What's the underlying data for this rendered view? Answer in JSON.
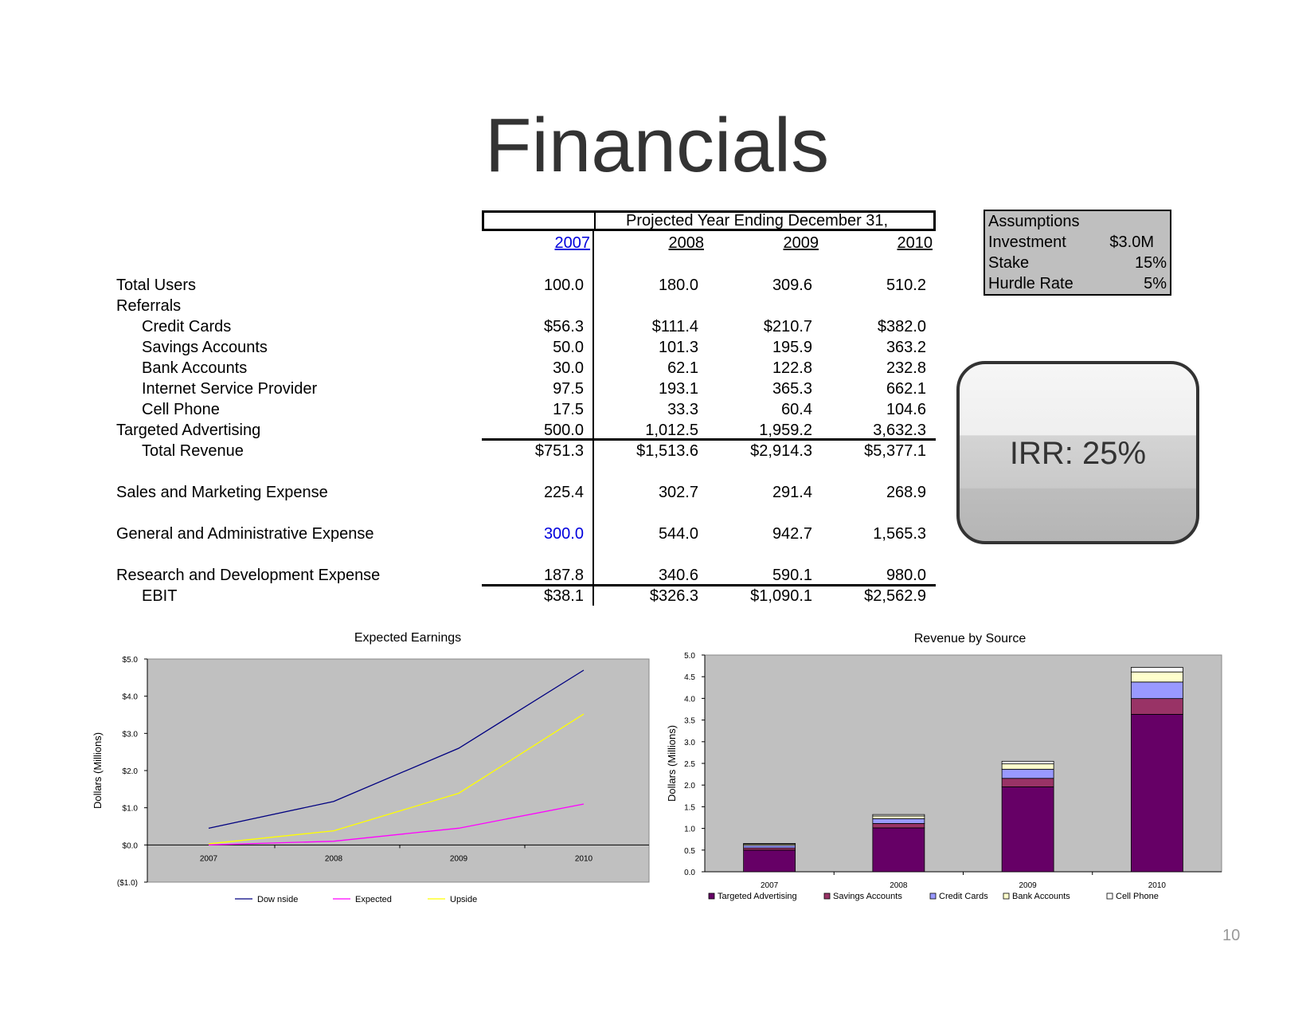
{
  "page": {
    "title": "Financials",
    "page_number": "10"
  },
  "table": {
    "header": "Projected Year Ending December 31,",
    "years": [
      "2007",
      "2008",
      "2009",
      "2010"
    ],
    "rows": [
      {
        "label": "Total Users",
        "values": [
          "100.0",
          "180.0",
          "309.6",
          "510.2"
        ]
      },
      {
        "label": "Referrals",
        "values": [
          "",
          "",
          "",
          ""
        ]
      },
      {
        "label": "Credit Cards",
        "values": [
          "$56.3",
          "$111.4",
          "$210.7",
          "$382.0"
        ]
      },
      {
        "label": "Savings Accounts",
        "values": [
          "50.0",
          "101.3",
          "195.9",
          "363.2"
        ]
      },
      {
        "label": "Bank Accounts",
        "values": [
          "30.0",
          "62.1",
          "122.8",
          "232.8"
        ]
      },
      {
        "label": "Internet Service Provider",
        "values": [
          "97.5",
          "193.1",
          "365.3",
          "662.1"
        ]
      },
      {
        "label": "Cell Phone",
        "values": [
          "17.5",
          "33.3",
          "60.4",
          "104.6"
        ]
      },
      {
        "label": "Targeted Advertising",
        "values": [
          "500.0",
          "1,012.5",
          "1,959.2",
          "3,632.3"
        ]
      },
      {
        "label": "Total Revenue",
        "values": [
          "$751.3",
          "$1,513.6",
          "$2,914.3",
          "$5,377.1"
        ]
      },
      {
        "label": "Sales and Marketing Expense",
        "values": [
          "225.4",
          "302.7",
          "291.4",
          "268.9"
        ]
      },
      {
        "label": "General and Administrative Expense",
        "values": [
          "300.0",
          "544.0",
          "942.7",
          "1,565.3"
        ]
      },
      {
        "label": "Research and Development Expense",
        "values": [
          "187.8",
          "340.6",
          "590.1",
          "980.0"
        ]
      },
      {
        "label": "EBIT",
        "values": [
          "$38.1",
          "$326.3",
          "$1,090.1",
          "$2,562.9"
        ]
      }
    ]
  },
  "assumptions": {
    "title": "Assumptions",
    "items": [
      {
        "label": "Investment",
        "value": "$3.0M"
      },
      {
        "label": "Stake",
        "value": "15%"
      },
      {
        "label": "Hurdle Rate",
        "value": "5%"
      }
    ]
  },
  "irr": {
    "text": "IRR: 25%"
  },
  "colors": {
    "plot_bg": "#c0c0c0",
    "downside": "#000080",
    "expected": "#ff00ff",
    "upside": "#ffff00",
    "targeted_advertising": "#660066",
    "savings_accounts": "#993366",
    "credit_cards": "#9999ff",
    "bank_accounts": "#ffffcc",
    "cell_phone": "#ffffff",
    "highlight_blue": "#0000dd"
  },
  "chart_data": [
    {
      "type": "line",
      "title": "Expected Earnings",
      "ylabel": "Dollars (Millions)",
      "xlabel": "",
      "categories": [
        "2007",
        "2008",
        "2009",
        "2010"
      ],
      "y_ticks": [
        "($1.0)",
        "$0.0",
        "$1.0",
        "$2.0",
        "$3.0",
        "$4.0",
        "$5.0"
      ],
      "ylim": [
        -1.0,
        5.0
      ],
      "grid": false,
      "legend": "bottom",
      "series": [
        {
          "name": "Downside",
          "legend_label": "Dow nside",
          "values": [
            0.45,
            1.17,
            2.6,
            4.7
          ]
        },
        {
          "name": "Expected",
          "legend_label": "Expected",
          "values": [
            0.0,
            0.1,
            0.45,
            1.1
          ]
        },
        {
          "name": "Upside",
          "legend_label": "Upside",
          "values": [
            0.03,
            0.38,
            1.39,
            3.52
          ]
        }
      ]
    },
    {
      "type": "bar",
      "stacked": true,
      "title": "Revenue by Source",
      "ylabel": "Dollars (Millions)",
      "xlabel": "",
      "categories": [
        "2007",
        "2008",
        "2009",
        "2010"
      ],
      "y_ticks": [
        "0.0",
        "0.5",
        "1.0",
        "1.5",
        "2.0",
        "2.5",
        "3.0",
        "3.5",
        "4.0",
        "4.5",
        "5.0"
      ],
      "ylim": [
        0,
        5.0
      ],
      "grid": false,
      "legend": "bottom",
      "series": [
        {
          "name": "Targeted Advertising",
          "values": [
            0.5,
            1.0125,
            1.9592,
            3.6323
          ]
        },
        {
          "name": "Savings Accounts",
          "values": [
            0.05,
            0.1013,
            0.1959,
            0.3632
          ]
        },
        {
          "name": "Credit Cards",
          "values": [
            0.0563,
            0.1114,
            0.2107,
            0.382
          ]
        },
        {
          "name": "Bank Accounts",
          "values": [
            0.03,
            0.0621,
            0.1228,
            0.2328
          ]
        },
        {
          "name": "Cell Phone",
          "values": [
            0.0175,
            0.0333,
            0.0604,
            0.1046
          ]
        }
      ]
    }
  ]
}
